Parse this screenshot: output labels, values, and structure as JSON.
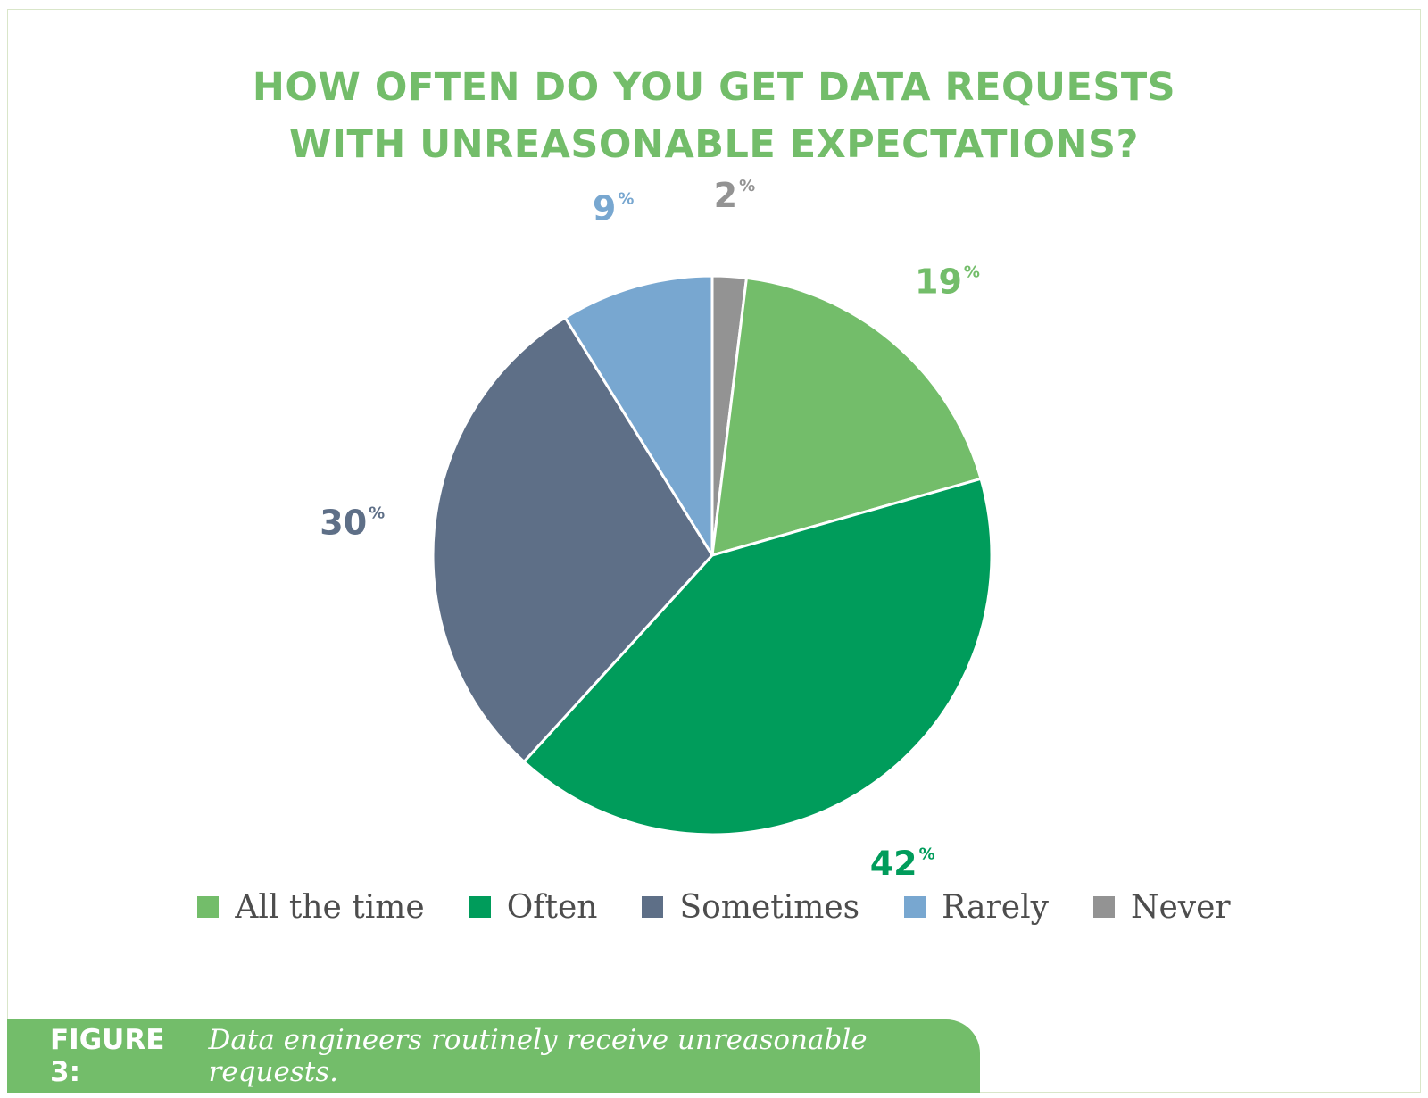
{
  "chart_data": {
    "type": "pie",
    "title_lines": [
      "HOW OFTEN DO YOU GET DATA REQUESTS",
      "WITH UNREASONABLE EXPECTATIONS?"
    ],
    "categories": [
      "All the time",
      "Often",
      "Sometimes",
      "Rarely",
      "Never"
    ],
    "values": [
      19,
      42,
      30,
      9,
      2
    ],
    "value_labels": [
      "19",
      "42",
      "30",
      "9",
      "2"
    ],
    "unit": "%",
    "colors": [
      "#73bd6a",
      "#009c5b",
      "#5e6f87",
      "#78a7d0",
      "#939393"
    ],
    "legend_position": "bottom",
    "start_angle": "top",
    "direction": "clockwise",
    "slice_order": [
      "Never",
      "All the time",
      "Often",
      "Sometimes",
      "Rarely"
    ]
  },
  "caption": {
    "label": "FIGURE 3:",
    "text": "Data engineers routinely receive unreasonable requests."
  }
}
